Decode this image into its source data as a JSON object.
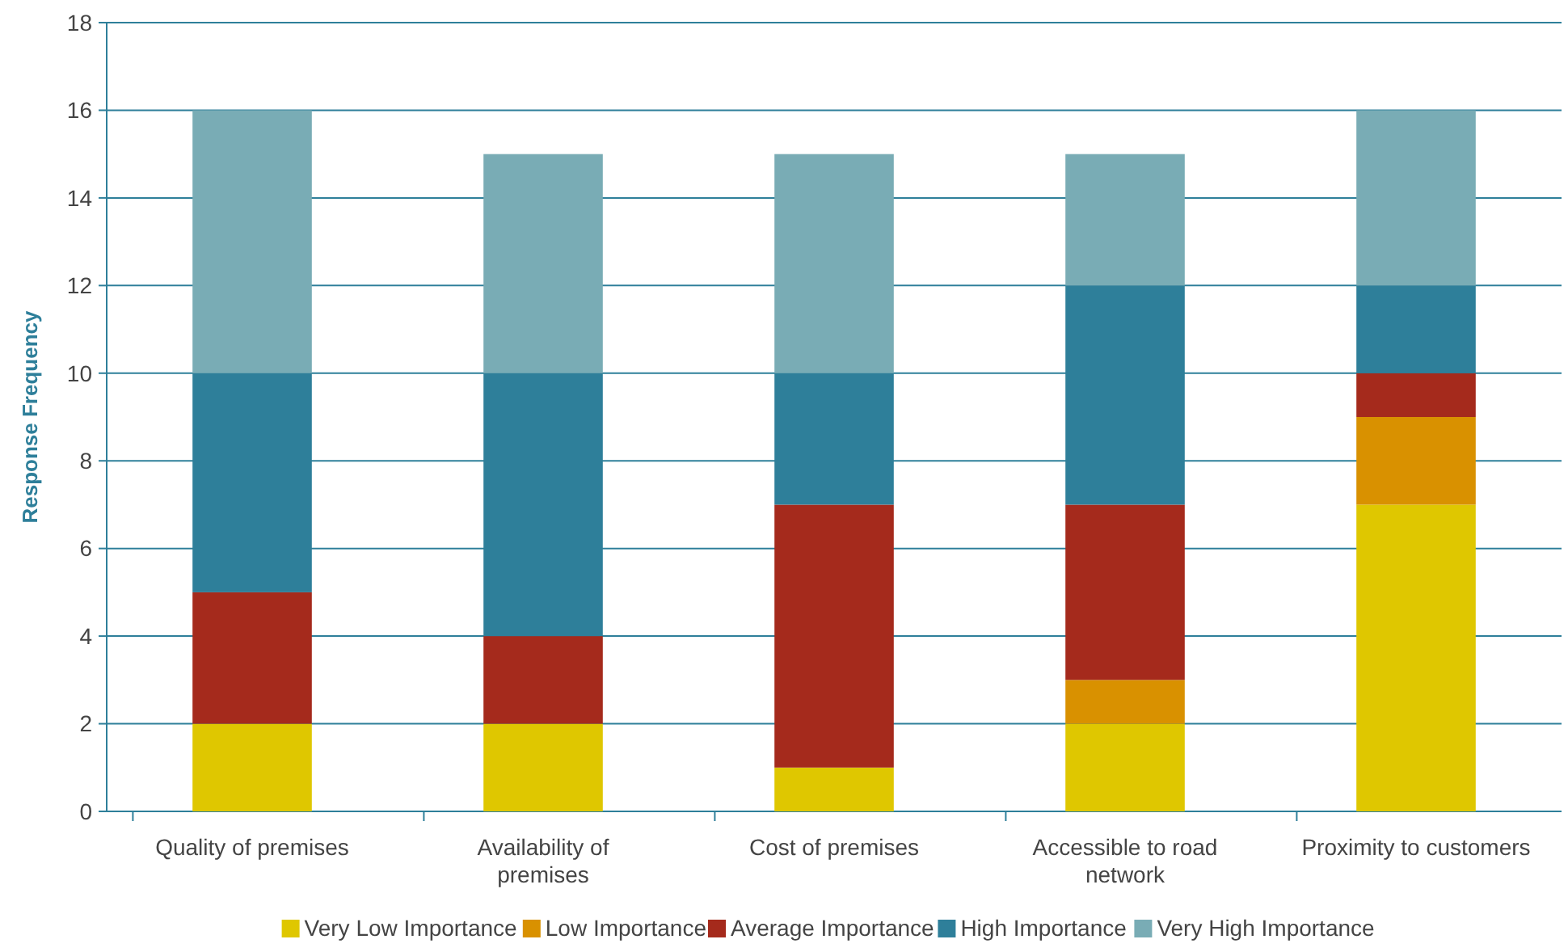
{
  "chart_data": {
    "type": "bar",
    "stacked": true,
    "ylabel": "Response Frequency",
    "categories": [
      "Quality of premises",
      "Availability of premises",
      "Cost of premises",
      "Accessible to road network",
      "Proximity to customers"
    ],
    "series": [
      {
        "name": "Very Low Importance",
        "color": "#dfc700",
        "values": [
          2,
          2,
          1,
          2,
          7
        ]
      },
      {
        "name": "Low Importance",
        "color": "#d99100",
        "values": [
          0,
          0,
          0,
          1,
          2
        ]
      },
      {
        "name": "Average Importance",
        "color": "#a52a1c",
        "values": [
          3,
          2,
          6,
          4,
          1
        ]
      },
      {
        "name": "High Importance",
        "color": "#2e7f9a",
        "values": [
          5,
          6,
          3,
          5,
          2
        ]
      },
      {
        "name": "Very High Importance",
        "color": "#79acb5",
        "values": [
          6,
          5,
          5,
          3,
          4
        ]
      }
    ],
    "ylim": [
      0,
      18
    ],
    "yticks": [
      0,
      2,
      4,
      6,
      8,
      10,
      12,
      14,
      16,
      18
    ],
    "grid": "y",
    "legend": "bottom"
  }
}
